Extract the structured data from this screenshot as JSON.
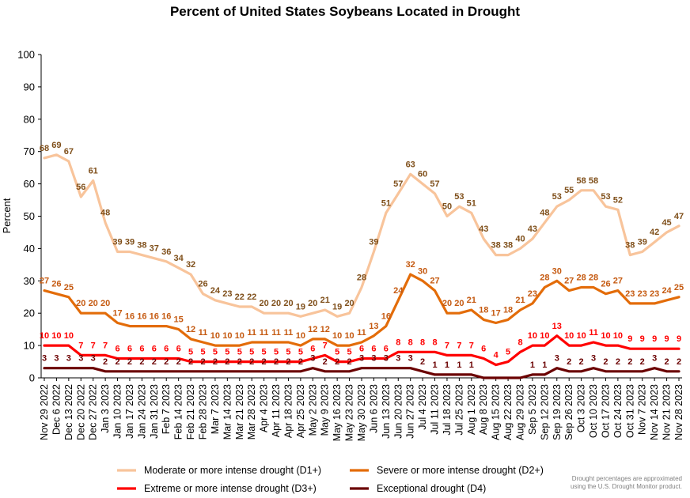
{
  "chart_data": {
    "type": "line",
    "title": "Percent of United States Soybeans Located in Drought",
    "ylabel": "Percent",
    "xlabel": "",
    "ylim": [
      0,
      100
    ],
    "yticks": [
      0,
      10,
      20,
      30,
      40,
      50,
      60,
      70,
      80,
      90,
      100
    ],
    "grid": false,
    "legend_position": "bottom",
    "categories": [
      "Nov 29 2022",
      "Dec 6 2022",
      "Dec 13 2022",
      "Dec 20 2022",
      "Dec 27 2022",
      "Jan 3 2023",
      "Jan 10 2023",
      "Jan 17 2023",
      "Jan 24 2023",
      "Jan 31 2023",
      "Feb 7 2023",
      "Feb 14 2023",
      "Feb 21 2023",
      "Feb 28 2023",
      "Mar 7 2023",
      "Mar 14 2023",
      "Mar 21 2023",
      "Mar 28 2023",
      "Apr 4 2023",
      "Apr 11 2023",
      "Apr 18 2023",
      "Apr 25 2023",
      "May 2 2023",
      "May 9 2023",
      "May 16 2023",
      "May 23 2023",
      "May 30 2023",
      "Jun 6 2023",
      "Jun 13 2023",
      "Jun 20 2023",
      "Jun 27 2023",
      "Jul 4 2023",
      "Jul 11 2023",
      "Jul 18 2023",
      "Jul 25 2023",
      "Aug 1 2023",
      "Aug 8 2023",
      "Aug 15 2023",
      "Aug 22 2023",
      "Aug 29 2023",
      "Sep 5 2023",
      "Sep 12 2023",
      "Sep 19 2023",
      "Sep 26 2023",
      "Oct 3 2023",
      "Oct 10 2023",
      "Oct 17 2023",
      "Oct 24 2023",
      "Oct 31 2023",
      "Nov 7 2023",
      "Nov 14 2023",
      "Nov 21 2023",
      "Nov 28 2023"
    ],
    "xtick_labels": [
      "Nov 29 2022",
      "Dec 6 2022",
      "Dec 13 2022",
      "Dec 20 2022",
      "Dec 27 2022",
      "Jan 3 2023",
      "Jan 10 2023",
      "Jan 17 2023",
      "Jan 24 2023",
      "Jan 31 2023",
      "Feb 7 2023",
      "Feb 14 2023",
      "Feb 21 2023",
      "Feb 28 2023",
      "Mar 7 2023",
      "Mar 14 2023",
      "Mar 21 2023",
      "Mar 28 2023",
      "Apr 4 2023",
      "Apr 11 2023",
      "Apr 18 2023",
      "Apr 25 2023",
      "May 2 2023",
      "May 9 2023",
      "May 16 2023",
      "May 23 2023",
      "May 30 2023",
      "Jun 6 2023",
      "Jun 13 2023",
      "Jun 20 2023",
      "Jun 27 2023",
      "Jul 4 2023",
      "Jul 11 2023",
      "Jul 18 2023",
      "Jul 25 2023",
      "Aug 1 2023",
      "Aug 8 2023",
      "Aug 15 2023",
      "Aug 22 2023",
      "Aug 29 2023",
      "Sep 5 2023",
      "Sep 12 2023",
      "Sep 19 2023",
      "Sep 26 2023",
      "Oct 3 2023",
      "Oct 10 2023",
      "Oct 17 2023",
      "Oct 24 2023",
      "Oct 31 2023",
      "Nov 7 2023",
      "Nov 14 2023",
      "Nov 21 2023",
      "Nov 28 2023"
    ],
    "series": [
      {
        "name": "Moderate or more intense drought (D1+)",
        "color": "#f8c49b",
        "label_color": "#7f4f1a",
        "values": [
          68,
          69,
          67,
          56,
          61,
          48,
          39,
          39,
          38,
          37,
          36,
          34,
          32,
          26,
          24,
          23,
          22,
          22,
          20,
          20,
          20,
          19,
          20,
          21,
          19,
          20,
          28,
          39,
          51,
          57,
          63,
          60,
          57,
          50,
          53,
          51,
          43,
          38,
          38,
          40,
          43,
          48,
          53,
          55,
          58,
          58,
          53,
          52,
          38,
          39,
          42,
          45,
          47
        ],
        "label_offset": -9
      },
      {
        "name": "Severe or more intense drought (D2+)",
        "color": "#e36c09",
        "label_color": "#c55a11",
        "values": [
          27,
          26,
          25,
          20,
          20,
          20,
          17,
          16,
          16,
          16,
          16,
          15,
          12,
          11,
          10,
          10,
          10,
          11,
          11,
          11,
          11,
          10,
          12,
          12,
          10,
          10,
          11,
          13,
          16,
          24,
          32,
          30,
          27,
          20,
          20,
          21,
          18,
          17,
          18,
          21,
          23,
          28,
          30,
          27,
          28,
          28,
          26,
          27,
          23,
          23,
          23,
          24,
          25
        ],
        "label_offset": -9
      },
      {
        "name": "Extreme or more intense drought (D3+)",
        "color": "#ff0000",
        "label_color": "#ff0000",
        "values": [
          10,
          10,
          10,
          7,
          7,
          7,
          6,
          6,
          6,
          6,
          6,
          6,
          5,
          5,
          5,
          5,
          5,
          5,
          5,
          5,
          5,
          5,
          6,
          7,
          5,
          5,
          6,
          6,
          6,
          8,
          8,
          8,
          8,
          7,
          7,
          7,
          6,
          4,
          5,
          8,
          10,
          10,
          13,
          10,
          10,
          11,
          10,
          10,
          9,
          9,
          9,
          9,
          9
        ],
        "label_offset": -9
      },
      {
        "name": "Exceptional drought (D4)",
        "color": "#6b0000",
        "label_color": "#6b0000",
        "values": [
          3,
          3,
          3,
          3,
          3,
          2,
          2,
          2,
          2,
          2,
          2,
          2,
          2,
          2,
          2,
          2,
          2,
          2,
          2,
          2,
          2,
          2,
          3,
          2,
          2,
          2,
          3,
          3,
          3,
          3,
          3,
          2,
          1,
          1,
          1,
          1,
          0,
          0,
          0,
          0,
          1,
          1,
          3,
          2,
          2,
          3,
          2,
          2,
          2,
          2,
          3,
          2,
          2
        ],
        "label_offset": -9
      }
    ],
    "data_labels": {
      "D1": [
        "68",
        "69",
        "67",
        "56",
        "61",
        "48",
        "39",
        "39",
        "38",
        "37",
        "36",
        "34",
        "32",
        "26",
        "24",
        "23",
        "22",
        "22",
        "20",
        "20",
        "20",
        "19",
        "20",
        "21",
        "19",
        "20",
        "28",
        "39",
        "51",
        "57",
        "63",
        "60",
        "57",
        "50",
        "53",
        "51",
        "43",
        "38",
        "38",
        "40",
        "43",
        "48",
        "53",
        "55",
        "58",
        "58",
        "53",
        "52",
        "38",
        "39",
        "42",
        "45",
        "47"
      ],
      "D2": [
        "27",
        "26",
        "25",
        "20",
        "20",
        "20",
        "17",
        "16",
        "16",
        "16",
        "16",
        "15",
        "12",
        "11",
        "10",
        "10",
        "10",
        "11",
        "11",
        "11",
        "11",
        "10",
        "12",
        "12",
        "10",
        "10",
        "11",
        "13",
        "16",
        "24",
        "32",
        "30",
        "27",
        "20",
        "20",
        "21",
        "18",
        "17",
        "18",
        "21",
        "23",
        "28",
        "30",
        "27",
        "28",
        "28",
        "26",
        "27",
        "23",
        "23",
        "23",
        "24",
        "25"
      ],
      "D3": [
        "10",
        "10",
        "10",
        "7",
        "7",
        "7",
        "6",
        "6",
        "6",
        "6",
        "6",
        "6",
        "5",
        "5",
        "5",
        "5",
        "5",
        "5",
        "5",
        "5",
        "5",
        "5",
        "6",
        "7",
        "5",
        "5",
        "6",
        "6",
        "6",
        "8",
        "8",
        "8",
        "8",
        "7",
        "7",
        "7",
        "6",
        "4",
        "5",
        "8",
        "10",
        "10",
        "13",
        "10",
        "10",
        "11",
        "10",
        "10",
        "9",
        "9",
        "9",
        "9",
        "9"
      ],
      "D4": [
        "3",
        "3",
        "3",
        "3",
        "3",
        "2",
        "2",
        "2",
        "2",
        "2",
        "2",
        "2",
        "2",
        "2",
        "2",
        "2",
        "2",
        "2",
        "2",
        "2",
        "2",
        "2",
        "3",
        "2",
        "2",
        "2",
        "3",
        "3",
        "3",
        "3",
        "3",
        "2",
        "1",
        "1",
        "1",
        "1",
        "",
        "",
        "",
        "",
        "1",
        "1",
        "3",
        "2",
        "2",
        "3",
        "2",
        "2",
        "2",
        "2",
        "3",
        "2",
        "2"
      ]
    },
    "legend": [
      {
        "label": "Moderate or more intense drought (D1+)",
        "color": "#f8c49b"
      },
      {
        "label": "Severe or more intense drought (D2+)",
        "color": "#e36c09"
      },
      {
        "label": "Extreme or more intense drought (D3+)",
        "color": "#ff0000"
      },
      {
        "label": "Exceptional drought (D4)",
        "color": "#6b0000"
      }
    ],
    "note_lines": [
      "Drought percentages are approximated",
      "using the U.S. Drought Monitor product."
    ]
  }
}
